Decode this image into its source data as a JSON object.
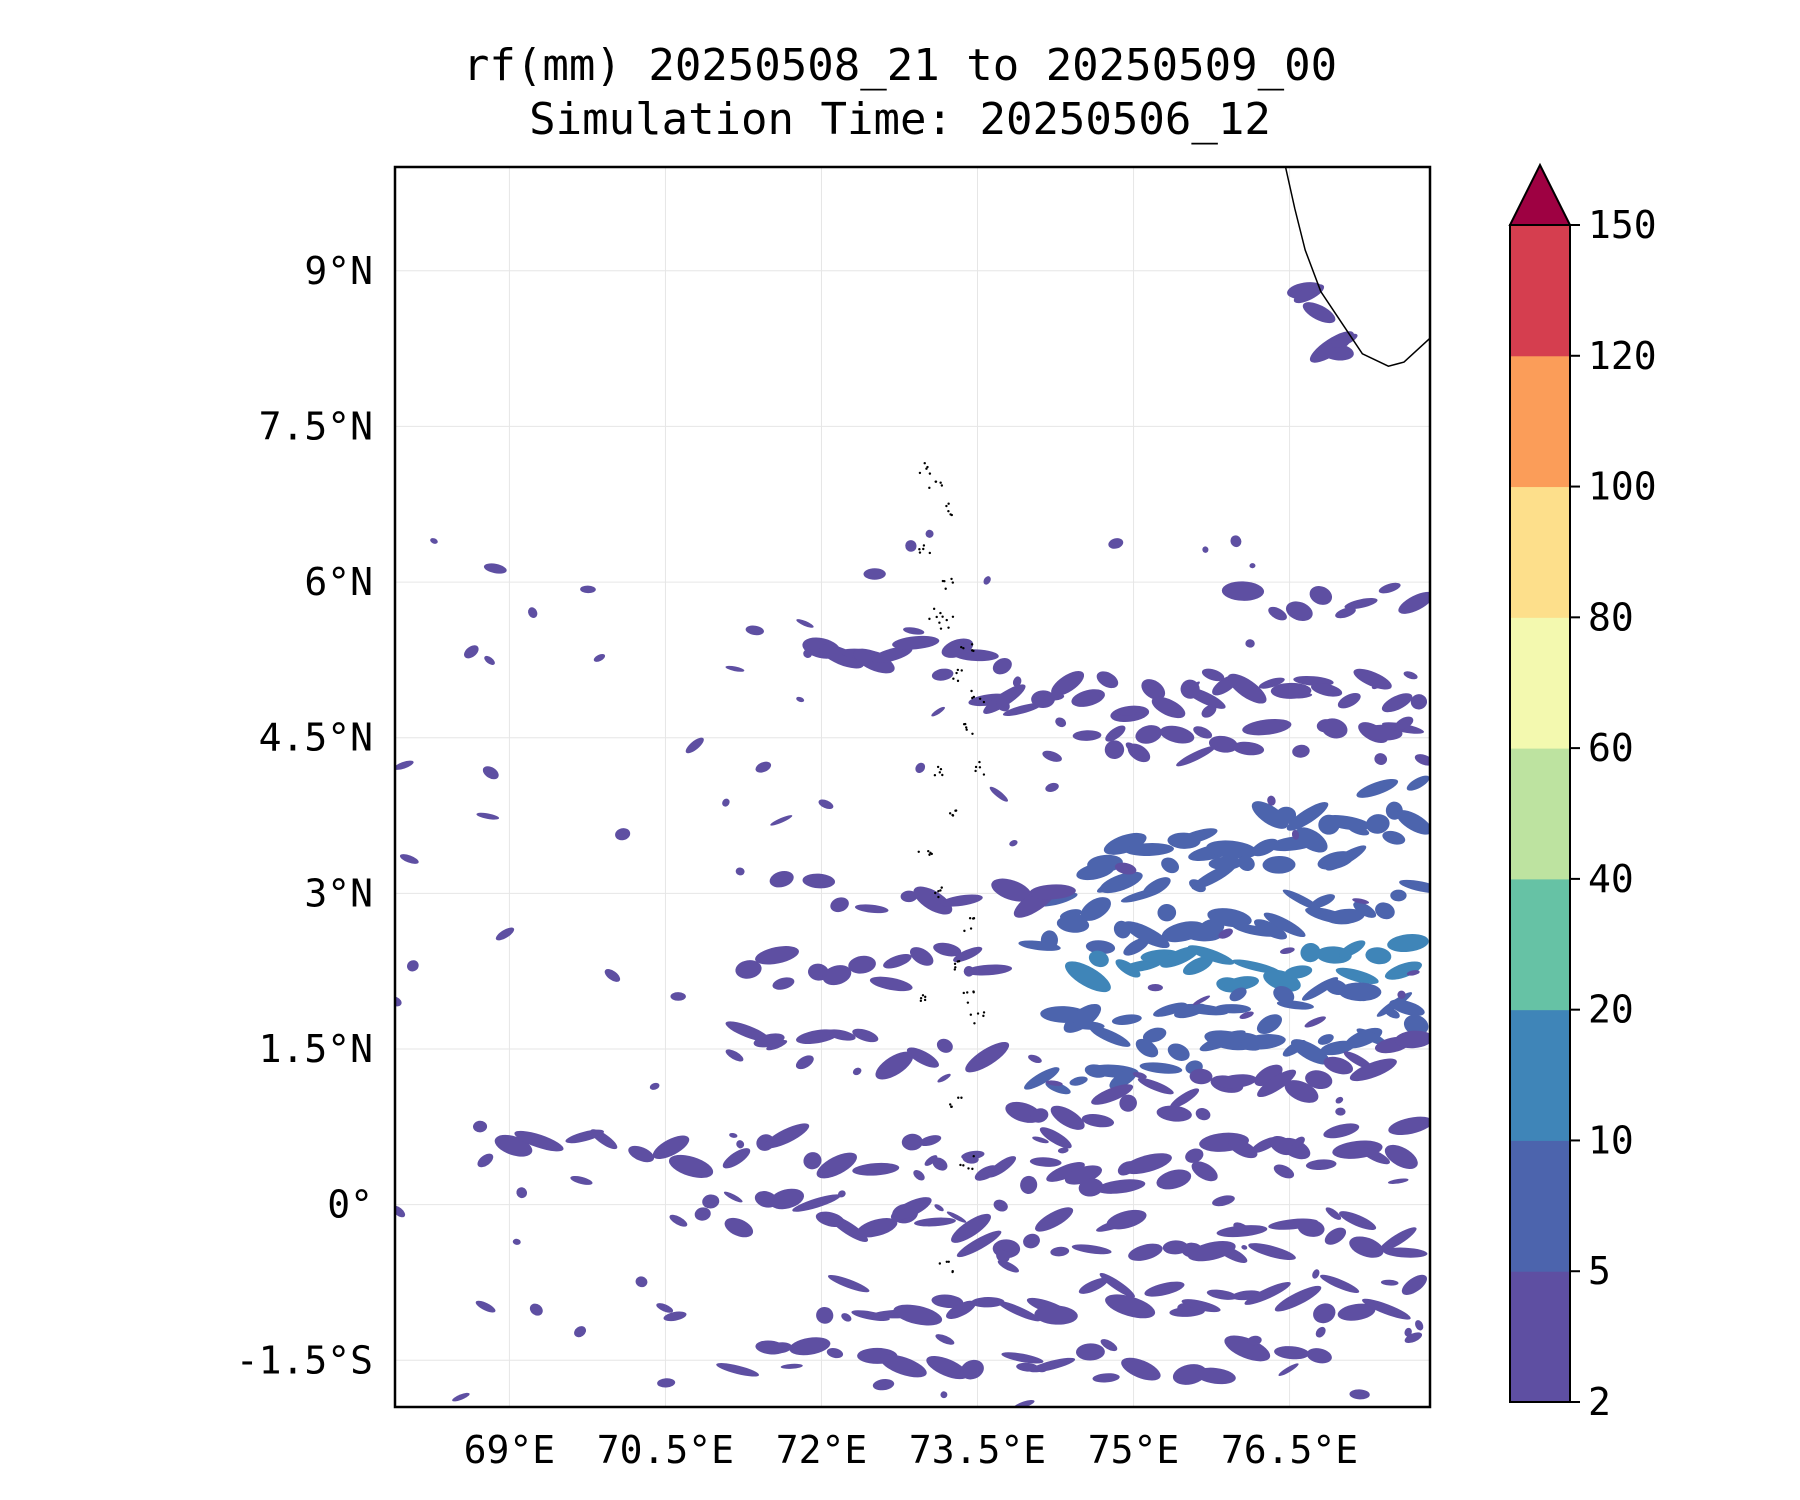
{
  "title": {
    "line1": "rf(mm) 20250508_21 to 20250509_00",
    "line2": "Simulation Time: 20250506_12"
  },
  "map": {
    "lon_range": [
      67.9,
      77.85
    ],
    "lat_range": [
      -1.95,
      10.0
    ],
    "lon_ticks": [
      {
        "value": 69.0,
        "label": "69°E"
      },
      {
        "value": 70.5,
        "label": "70.5°E"
      },
      {
        "value": 72.0,
        "label": "72°E"
      },
      {
        "value": 73.5,
        "label": "73.5°E"
      },
      {
        "value": 75.0,
        "label": "75°E"
      },
      {
        "value": 76.5,
        "label": "76.5°E"
      }
    ],
    "lat_ticks": [
      {
        "value": 9.0,
        "label": "9°N"
      },
      {
        "value": 7.5,
        "label": "7.5°N"
      },
      {
        "value": 6.0,
        "label": "6°N"
      },
      {
        "value": 4.5,
        "label": "4.5°N"
      },
      {
        "value": 3.0,
        "label": "3°N"
      },
      {
        "value": 1.5,
        "label": "1.5°N"
      },
      {
        "value": 0.0,
        "label": "0°"
      },
      {
        "value": -1.5,
        "label": "-1.5°S"
      }
    ],
    "gridlines": true,
    "coastline_color": "#000000",
    "fill_colors": {
      "light": "#5e4fa2",
      "mid": "#4c64ad",
      "heavy": "#3f85b8"
    },
    "rain_bands": [
      {
        "lat": 5.45,
        "lon0": 71.9,
        "lon1": 73.8,
        "slope": -0.18,
        "n": 10,
        "level": "light"
      },
      {
        "lat": 4.9,
        "lon0": 73.5,
        "lon1": 77.8,
        "slope": 0.0,
        "n": 22,
        "level": "light"
      },
      {
        "lat": 4.45,
        "lon0": 74.2,
        "lon1": 77.8,
        "slope": 0.0,
        "n": 16,
        "level": "light"
      },
      {
        "lat": 5.8,
        "lon0": 76.0,
        "lon1": 77.8,
        "slope": 0.0,
        "n": 8,
        "level": "light"
      },
      {
        "lat": 3.2,
        "lon0": 74.5,
        "lon1": 77.8,
        "slope": 0.25,
        "n": 16,
        "level": "mid"
      },
      {
        "lat": 2.9,
        "lon0": 74.2,
        "lon1": 77.8,
        "slope": 0.2,
        "n": 22,
        "level": "mid"
      },
      {
        "lat": 2.55,
        "lon0": 74.0,
        "lon1": 77.8,
        "slope": 0.1,
        "n": 24,
        "level": "mid"
      },
      {
        "lat": 2.2,
        "lon0": 74.5,
        "lon1": 77.8,
        "slope": 0.05,
        "n": 20,
        "level": "heavy"
      },
      {
        "lat": 1.7,
        "lon0": 74.2,
        "lon1": 77.8,
        "slope": 0.1,
        "n": 20,
        "level": "mid"
      },
      {
        "lat": 1.2,
        "lon0": 74.0,
        "lon1": 77.8,
        "slope": 0.15,
        "n": 22,
        "level": "mid"
      },
      {
        "lat": 0.7,
        "lon0": 73.8,
        "lon1": 77.8,
        "slope": 0.2,
        "n": 22,
        "level": "light"
      },
      {
        "lat": 0.2,
        "lon0": 73.5,
        "lon1": 77.8,
        "slope": 0.1,
        "n": 24,
        "level": "light"
      },
      {
        "lat": -0.3,
        "lon0": 73.5,
        "lon1": 77.8,
        "slope": 0.0,
        "n": 22,
        "level": "light"
      },
      {
        "lat": -0.9,
        "lon0": 72.0,
        "lon1": 77.8,
        "slope": 0.0,
        "n": 26,
        "level": "light"
      },
      {
        "lat": -1.5,
        "lon0": 71.0,
        "lon1": 77.0,
        "slope": 0.0,
        "n": 18,
        "level": "light"
      },
      {
        "lat": 2.3,
        "lon0": 71.2,
        "lon1": 73.8,
        "slope": 0.0,
        "n": 12,
        "level": "light"
      },
      {
        "lat": 1.5,
        "lon0": 71.0,
        "lon1": 73.8,
        "slope": 0.0,
        "n": 12,
        "level": "light"
      },
      {
        "lat": 0.5,
        "lon0": 69.0,
        "lon1": 73.5,
        "slope": 0.0,
        "n": 16,
        "level": "light"
      },
      {
        "lat": -0.1,
        "lon0": 70.5,
        "lon1": 73.5,
        "slope": 0.0,
        "n": 14,
        "level": "light"
      },
      {
        "lat": 8.7,
        "lon0": 76.6,
        "lon1": 77.1,
        "slope": -0.9,
        "n": 6,
        "level": "light"
      },
      {
        "lat": 3.0,
        "lon0": 71.5,
        "lon1": 74.5,
        "slope": 0.0,
        "n": 10,
        "level": "light"
      }
    ]
  },
  "colorbar": {
    "extend": "max",
    "extend_color": "#9e0142",
    "levels": [
      {
        "label": "2",
        "color": "#5e4fa2"
      },
      {
        "label": "5",
        "color": "#4c64ad"
      },
      {
        "label": "10",
        "color": "#3f85b8"
      },
      {
        "label": "20",
        "color": "#66c2a5"
      },
      {
        "label": "40",
        "color": "#bde3a0"
      },
      {
        "label": "60",
        "color": "#f3f9af"
      },
      {
        "label": "80",
        "color": "#fddf8b"
      },
      {
        "label": "100",
        "color": "#fb9d59"
      },
      {
        "label": "120",
        "color": "#d53e4f"
      },
      {
        "label": "150",
        "color": ""
      }
    ]
  }
}
